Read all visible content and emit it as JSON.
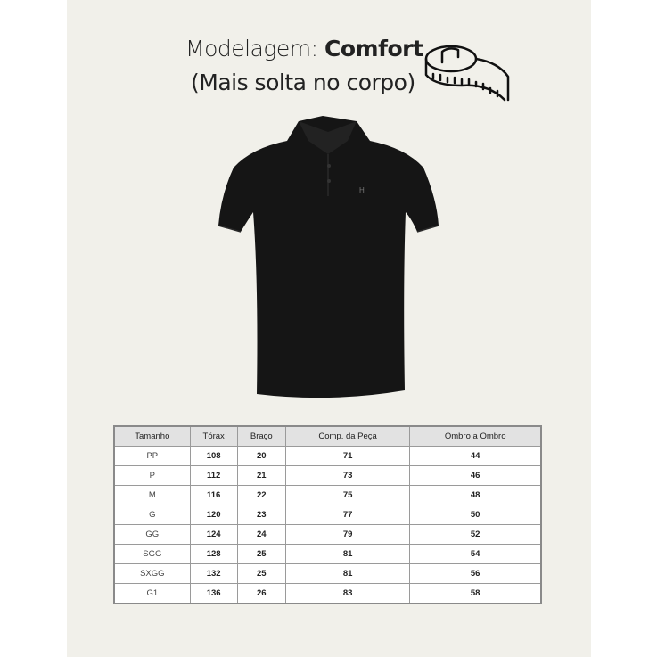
{
  "heading": {
    "prefix": "Modelagem: ",
    "fit": "Comfort",
    "subtitle": "(Mais solta no corpo)"
  },
  "icons": {
    "tape": "measuring-tape-icon",
    "product": "black-polo-shirt"
  },
  "colors": {
    "background": "#f1f0ea",
    "shirt": "#151515",
    "header": "#e2e2e2"
  },
  "table": {
    "headers": [
      "Tamanho",
      "Tórax",
      "Braço",
      "Comp. da Peça",
      "Ombro a Ombro"
    ],
    "rows": [
      [
        "PP",
        "108",
        "20",
        "71",
        "44"
      ],
      [
        "P",
        "112",
        "21",
        "73",
        "46"
      ],
      [
        "M",
        "116",
        "22",
        "75",
        "48"
      ],
      [
        "G",
        "120",
        "23",
        "77",
        "50"
      ],
      [
        "GG",
        "124",
        "24",
        "79",
        "52"
      ],
      [
        "SGG",
        "128",
        "25",
        "81",
        "54"
      ],
      [
        "SXGG",
        "132",
        "25",
        "81",
        "56"
      ],
      [
        "G1",
        "136",
        "26",
        "83",
        "58"
      ]
    ]
  }
}
